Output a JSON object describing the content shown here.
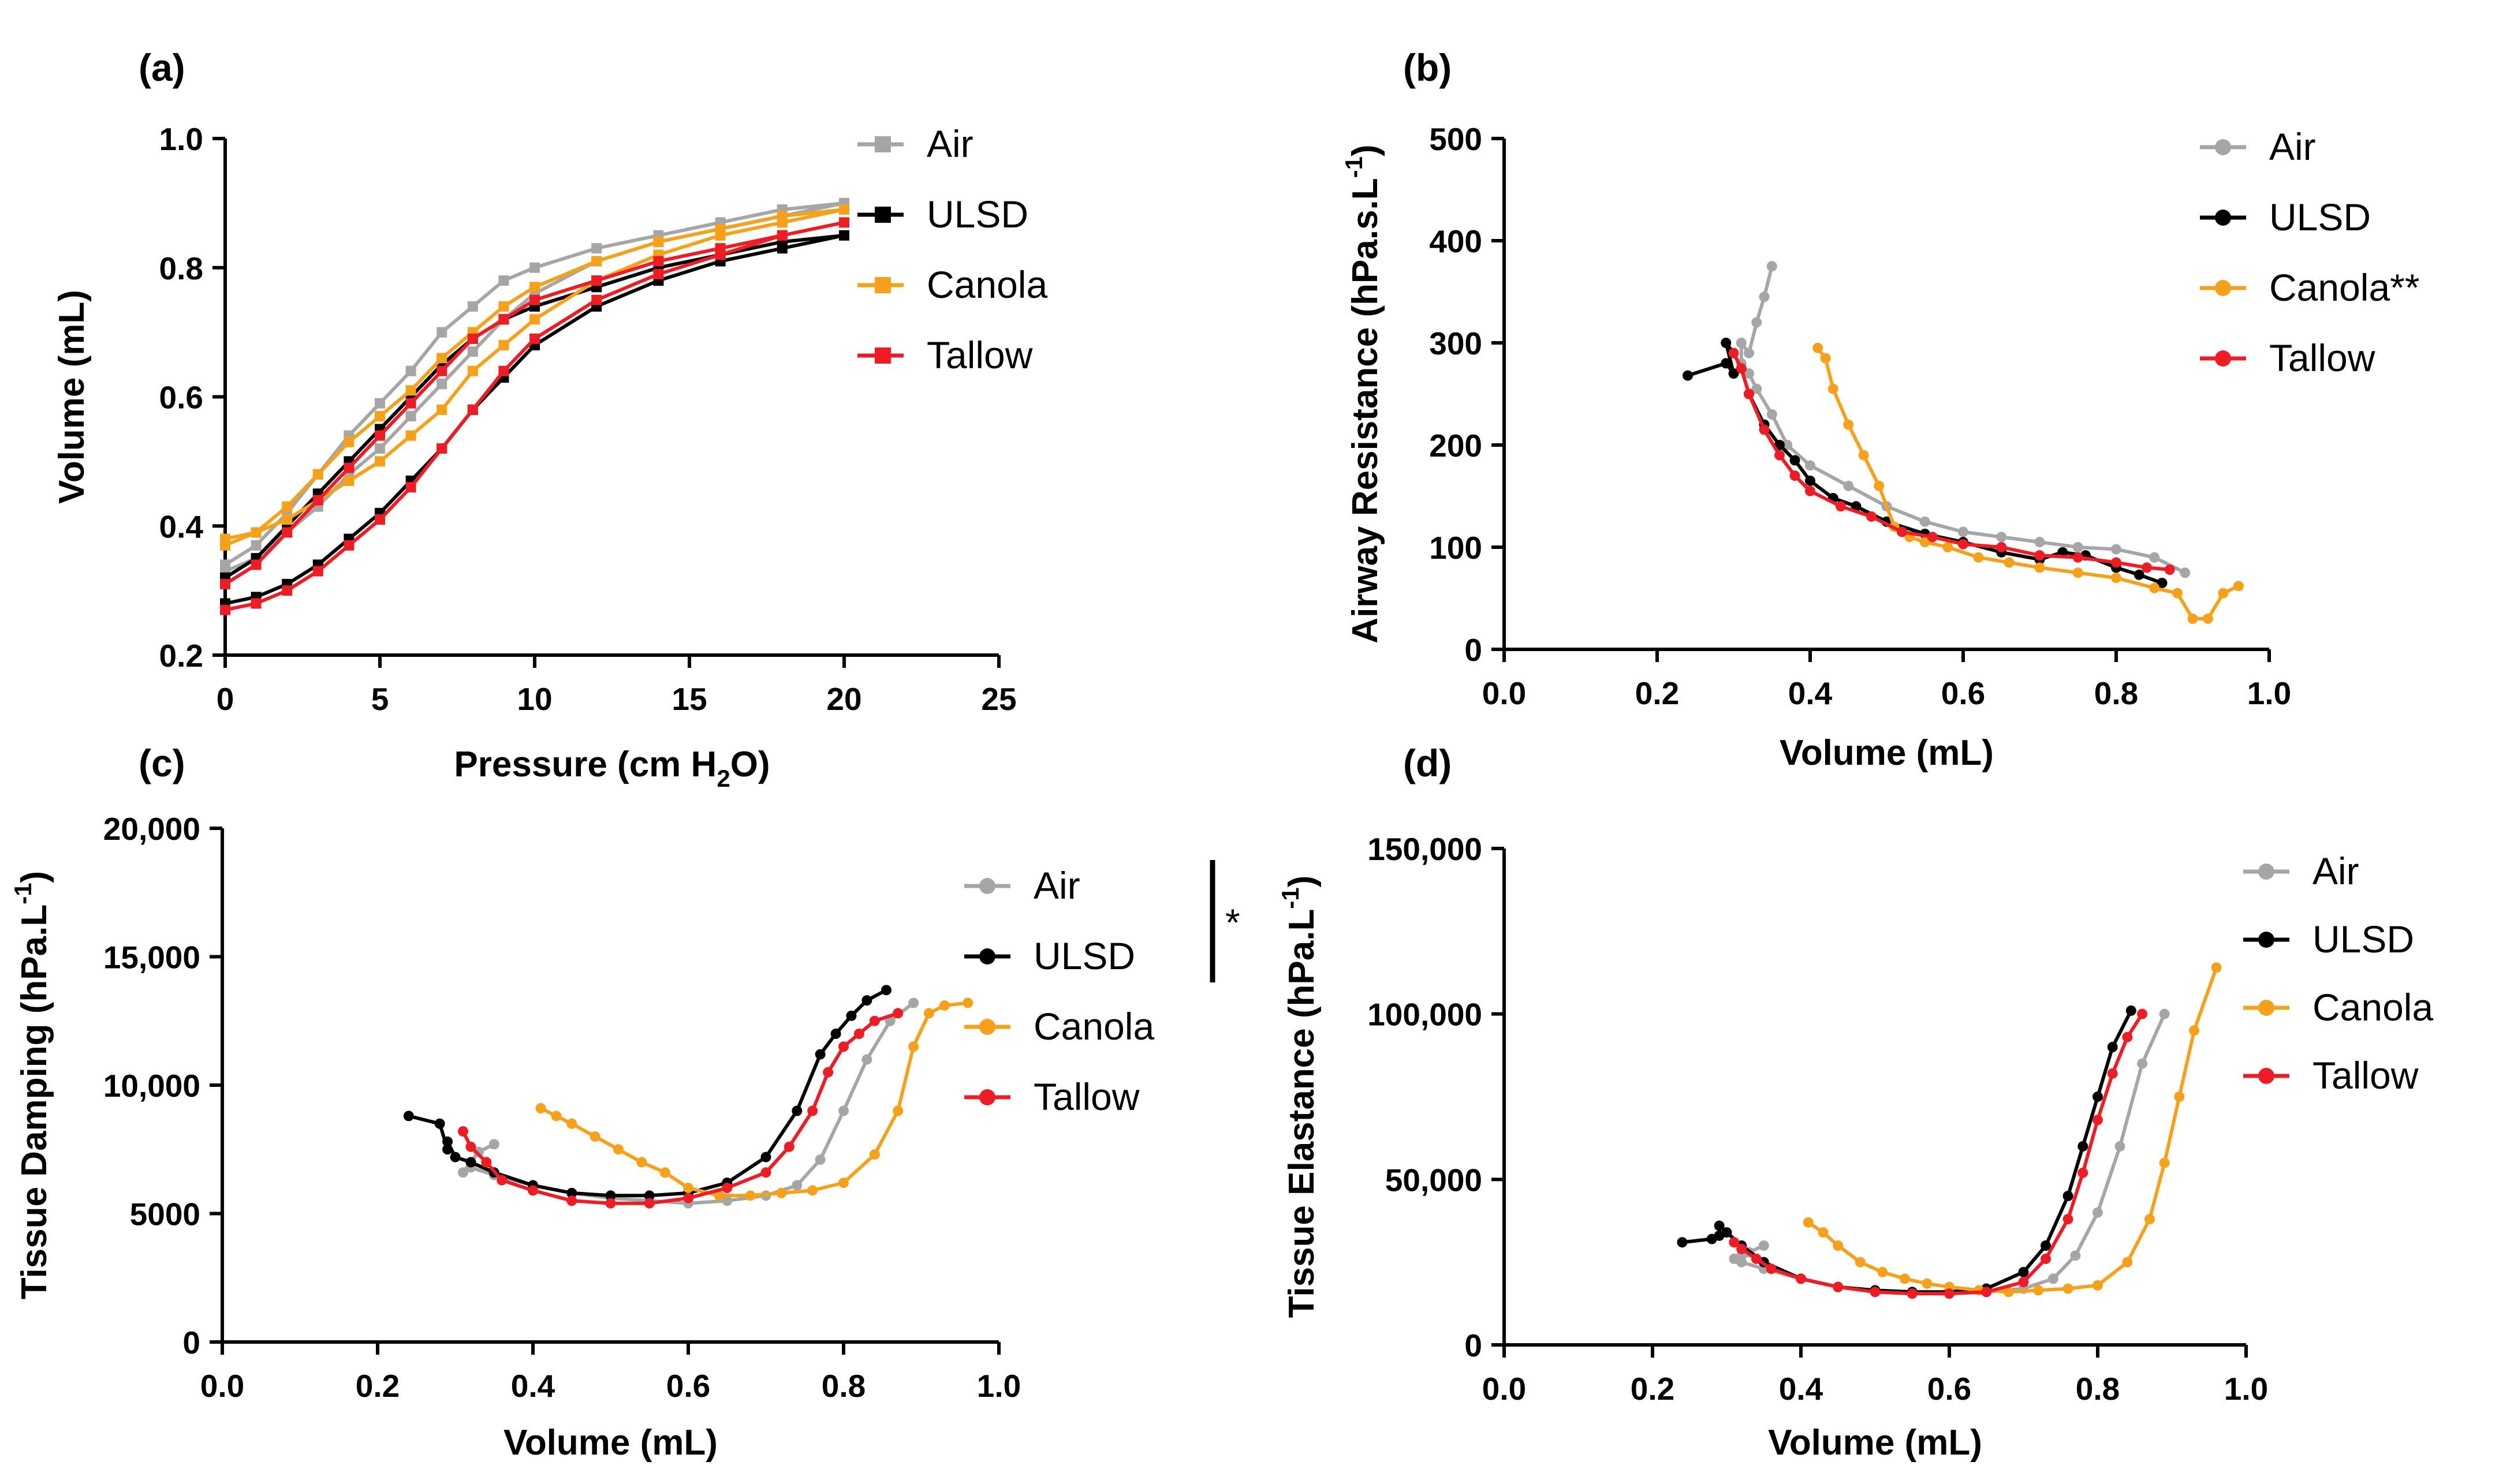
{
  "colors": {
    "Air": "#a6a6a6",
    "ULSD": "#000000",
    "Canola": "#f5a11c",
    "Tallow": "#ee1c24"
  },
  "chart_data": [
    {
      "panel": "(a)",
      "type": "line",
      "marker": "square",
      "xlabel": "Pressure (cm H2O)",
      "ylabel": "Volume (mL)",
      "xlim": [
        0,
        25
      ],
      "ylim": [
        0.2,
        1.0
      ],
      "xticks": [
        "0",
        "5",
        "10",
        "15",
        "20",
        "25"
      ],
      "yticks": [
        "0.2",
        "0.4",
        "0.6",
        "0.8",
        "1.0"
      ],
      "legend_position": "top-right",
      "series": [
        {
          "name": "Air",
          "x": [
            0,
            1,
            2,
            3,
            4,
            5,
            6,
            7,
            8,
            9,
            10,
            12,
            14,
            16,
            18,
            20,
            18,
            16,
            14,
            12,
            10,
            9,
            8,
            7,
            6,
            5,
            4,
            3,
            2,
            1,
            0
          ],
          "y": [
            0.34,
            0.37,
            0.42,
            0.48,
            0.54,
            0.59,
            0.64,
            0.7,
            0.74,
            0.78,
            0.8,
            0.83,
            0.85,
            0.87,
            0.89,
            0.9,
            0.88,
            0.86,
            0.84,
            0.81,
            0.76,
            0.72,
            0.67,
            0.62,
            0.57,
            0.52,
            0.48,
            0.43,
            0.39,
            0.35,
            0.33
          ]
        },
        {
          "name": "ULSD",
          "x": [
            0,
            1,
            2,
            3,
            4,
            5,
            6,
            7,
            8,
            9,
            10,
            12,
            14,
            16,
            18,
            20,
            18,
            16,
            14,
            12,
            10,
            9,
            8,
            7,
            6,
            5,
            4,
            3,
            2,
            1,
            0
          ],
          "y": [
            0.28,
            0.29,
            0.31,
            0.34,
            0.38,
            0.42,
            0.47,
            0.52,
            0.58,
            0.63,
            0.68,
            0.74,
            0.78,
            0.81,
            0.83,
            0.85,
            0.84,
            0.82,
            0.8,
            0.77,
            0.74,
            0.72,
            0.69,
            0.65,
            0.6,
            0.55,
            0.5,
            0.45,
            0.4,
            0.35,
            0.32
          ]
        },
        {
          "name": "Canola",
          "x": [
            0,
            1,
            2,
            3,
            4,
            5,
            6,
            7,
            8,
            9,
            10,
            12,
            14,
            16,
            18,
            20,
            18,
            16,
            14,
            12,
            10,
            9,
            8,
            7,
            6,
            5,
            4,
            3,
            2,
            1,
            0
          ],
          "y": [
            0.37,
            0.39,
            0.43,
            0.48,
            0.53,
            0.57,
            0.61,
            0.66,
            0.7,
            0.74,
            0.77,
            0.81,
            0.84,
            0.86,
            0.88,
            0.89,
            0.87,
            0.85,
            0.82,
            0.78,
            0.72,
            0.68,
            0.64,
            0.58,
            0.54,
            0.5,
            0.47,
            0.44,
            0.41,
            0.39,
            0.38
          ]
        },
        {
          "name": "Tallow",
          "x": [
            0,
            1,
            2,
            3,
            4,
            5,
            6,
            7,
            8,
            9,
            10,
            12,
            14,
            16,
            18,
            20,
            18,
            16,
            14,
            12,
            10,
            9,
            8,
            7,
            6,
            5,
            4,
            3,
            2,
            1,
            0
          ],
          "y": [
            0.27,
            0.28,
            0.3,
            0.33,
            0.37,
            0.41,
            0.46,
            0.52,
            0.58,
            0.64,
            0.69,
            0.75,
            0.79,
            0.82,
            0.85,
            0.87,
            0.85,
            0.83,
            0.81,
            0.78,
            0.75,
            0.72,
            0.69,
            0.64,
            0.59,
            0.54,
            0.49,
            0.44,
            0.39,
            0.34,
            0.31
          ]
        }
      ]
    },
    {
      "panel": "(b)",
      "type": "line",
      "marker": "circle",
      "xlabel": "Volume (mL)",
      "ylabel": "Airway Resistance (hPa.s.L-1)",
      "xlim": [
        0,
        1.0
      ],
      "ylim": [
        0,
        500
      ],
      "xticks": [
        "0.0",
        "0.2",
        "0.4",
        "0.6",
        "0.8",
        "1.0"
      ],
      "yticks": [
        "0",
        "100",
        "200",
        "300",
        "400",
        "500"
      ],
      "legend_position": "top-right",
      "series": [
        {
          "name": "Air",
          "x": [
            0.35,
            0.34,
            0.33,
            0.32,
            0.31,
            0.31,
            0.32,
            0.33,
            0.35,
            0.37,
            0.4,
            0.45,
            0.5,
            0.55,
            0.6,
            0.65,
            0.7,
            0.75,
            0.8,
            0.85,
            0.89
          ],
          "y": [
            375,
            345,
            320,
            290,
            300,
            280,
            270,
            255,
            230,
            200,
            180,
            160,
            140,
            125,
            115,
            110,
            105,
            100,
            98,
            90,
            75
          ]
        },
        {
          "name": "ULSD",
          "x": [
            0.24,
            0.29,
            0.3,
            0.29,
            0.3,
            0.31,
            0.32,
            0.34,
            0.36,
            0.38,
            0.4,
            0.43,
            0.46,
            0.5,
            0.55,
            0.6,
            0.65,
            0.7,
            0.73,
            0.76,
            0.8,
            0.83,
            0.86
          ],
          "y": [
            268,
            280,
            270,
            300,
            290,
            275,
            250,
            220,
            200,
            185,
            165,
            148,
            140,
            125,
            113,
            105,
            95,
            88,
            95,
            92,
            80,
            73,
            65
          ]
        },
        {
          "name": "Canola",
          "x": [
            0.41,
            0.42,
            0.43,
            0.45,
            0.47,
            0.49,
            0.51,
            0.53,
            0.55,
            0.58,
            0.62,
            0.66,
            0.7,
            0.75,
            0.8,
            0.85,
            0.88,
            0.9,
            0.92,
            0.94,
            0.96
          ],
          "y": [
            295,
            285,
            255,
            220,
            190,
            160,
            120,
            110,
            105,
            100,
            90,
            85,
            80,
            75,
            70,
            60,
            55,
            30,
            30,
            55,
            62
          ]
        },
        {
          "name": "Tallow",
          "x": [
            0.3,
            0.31,
            0.32,
            0.34,
            0.36,
            0.38,
            0.4,
            0.44,
            0.48,
            0.52,
            0.56,
            0.6,
            0.65,
            0.7,
            0.75,
            0.8,
            0.84,
            0.87
          ],
          "y": [
            290,
            275,
            250,
            215,
            190,
            170,
            155,
            140,
            130,
            115,
            110,
            103,
            100,
            92,
            90,
            85,
            80,
            78
          ]
        }
      ]
    },
    {
      "panel": "(c)",
      "type": "line",
      "marker": "circle",
      "xlabel": "Volume (mL)",
      "ylabel": "Tissue Damping (hPa.L-1)",
      "xlim": [
        0,
        1.0
      ],
      "ylim": [
        0,
        20000
      ],
      "xticks": [
        "0.0",
        "0.2",
        "0.4",
        "0.6",
        "0.8",
        "1.0"
      ],
      "yticks": [
        "0",
        "5000",
        "10,000",
        "15,000",
        "20,000"
      ],
      "legend_position": "top-right",
      "significance_bracket": "*",
      "series": [
        {
          "name": "Air",
          "x": [
            0.35,
            0.33,
            0.32,
            0.31,
            0.32,
            0.35,
            0.4,
            0.45,
            0.5,
            0.55,
            0.6,
            0.65,
            0.7,
            0.74,
            0.77,
            0.8,
            0.83,
            0.86,
            0.89
          ],
          "y": [
            7700,
            7400,
            7000,
            6600,
            6800,
            6500,
            6100,
            5800,
            5600,
            5500,
            5400,
            5500,
            5700,
            6100,
            7100,
            9000,
            11000,
            12500,
            13200
          ]
        },
        {
          "name": "ULSD",
          "x": [
            0.24,
            0.28,
            0.29,
            0.29,
            0.3,
            0.32,
            0.35,
            0.4,
            0.45,
            0.5,
            0.55,
            0.6,
            0.65,
            0.7,
            0.74,
            0.77,
            0.79,
            0.81,
            0.83,
            0.855
          ],
          "y": [
            8800,
            8500,
            7500,
            7800,
            7200,
            7000,
            6600,
            6100,
            5800,
            5700,
            5700,
            5800,
            6200,
            7200,
            9000,
            11200,
            12000,
            12700,
            13300,
            13700
          ]
        },
        {
          "name": "Canola",
          "x": [
            0.41,
            0.43,
            0.45,
            0.48,
            0.51,
            0.54,
            0.57,
            0.6,
            0.64,
            0.68,
            0.72,
            0.76,
            0.8,
            0.84,
            0.87,
            0.89,
            0.91,
            0.93,
            0.96
          ],
          "y": [
            9100,
            8800,
            8500,
            8000,
            7500,
            7000,
            6600,
            6000,
            5700,
            5700,
            5800,
            5900,
            6200,
            7300,
            9000,
            11500,
            12800,
            13100,
            13200
          ]
        },
        {
          "name": "Tallow",
          "x": [
            0.31,
            0.32,
            0.34,
            0.36,
            0.4,
            0.45,
            0.5,
            0.55,
            0.6,
            0.65,
            0.7,
            0.73,
            0.76,
            0.78,
            0.8,
            0.82,
            0.84,
            0.87
          ],
          "y": [
            8200,
            7600,
            7000,
            6300,
            5900,
            5500,
            5400,
            5400,
            5600,
            6000,
            6600,
            7600,
            9000,
            10500,
            11500,
            12000,
            12500,
            12800
          ]
        }
      ]
    },
    {
      "panel": "(d)",
      "type": "line",
      "marker": "circle",
      "xlabel": "Volume (mL)",
      "ylabel": "Tissue Elastance (hPa.L-1)",
      "xlim": [
        0,
        1.0
      ],
      "ylim": [
        0,
        150000
      ],
      "xticks": [
        "0.0",
        "0.2",
        "0.4",
        "0.6",
        "0.8",
        "1.0"
      ],
      "yticks": [
        "0",
        "50,000",
        "100,000",
        "150,000"
      ],
      "legend_position": "top-right",
      "series": [
        {
          "name": "Air",
          "x": [
            0.35,
            0.33,
            0.32,
            0.31,
            0.32,
            0.35,
            0.4,
            0.45,
            0.5,
            0.55,
            0.6,
            0.65,
            0.7,
            0.74,
            0.77,
            0.8,
            0.83,
            0.86,
            0.89
          ],
          "y": [
            30000,
            28000,
            27000,
            26000,
            25000,
            23000,
            20000,
            17500,
            16000,
            15500,
            15500,
            16000,
            17000,
            20000,
            27000,
            40000,
            60000,
            85000,
            100000
          ]
        },
        {
          "name": "ULSD",
          "x": [
            0.24,
            0.28,
            0.29,
            0.29,
            0.3,
            0.32,
            0.35,
            0.4,
            0.45,
            0.5,
            0.55,
            0.6,
            0.65,
            0.7,
            0.73,
            0.76,
            0.78,
            0.8,
            0.82,
            0.845
          ],
          "y": [
            31000,
            32000,
            33000,
            36000,
            34000,
            30000,
            25000,
            20000,
            17500,
            16500,
            16000,
            16000,
            17000,
            22000,
            30000,
            45000,
            60000,
            75000,
            90000,
            101000
          ]
        },
        {
          "name": "Canola",
          "x": [
            0.41,
            0.43,
            0.45,
            0.48,
            0.51,
            0.54,
            0.57,
            0.6,
            0.64,
            0.68,
            0.72,
            0.76,
            0.8,
            0.84,
            0.87,
            0.89,
            0.91,
            0.93,
            0.96
          ],
          "y": [
            37000,
            34000,
            30000,
            25000,
            22000,
            20000,
            18500,
            17500,
            16500,
            16000,
            16500,
            17000,
            18000,
            25000,
            38000,
            55000,
            75000,
            95000,
            114000
          ]
        },
        {
          "name": "Tallow",
          "x": [
            0.31,
            0.32,
            0.34,
            0.36,
            0.4,
            0.45,
            0.5,
            0.55,
            0.6,
            0.65,
            0.7,
            0.73,
            0.76,
            0.78,
            0.8,
            0.82,
            0.84,
            0.86
          ],
          "y": [
            31000,
            29000,
            26000,
            23000,
            20000,
            17500,
            16000,
            15500,
            15500,
            16000,
            19000,
            26000,
            38000,
            52000,
            68000,
            82000,
            93000,
            100000
          ]
        }
      ]
    }
  ]
}
